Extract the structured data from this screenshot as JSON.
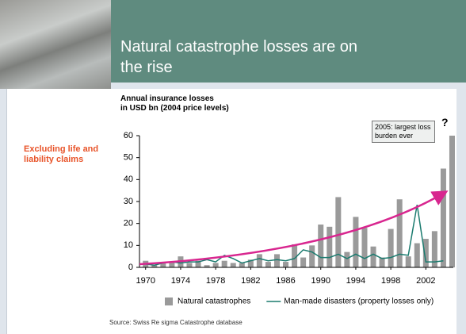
{
  "slide_title": "Natural catastrophe losses are on the rise",
  "note": "Excluding life and liability claims",
  "source": "Source: Swiss Re sigma Catastrophe database",
  "chart_data": {
    "type": "bar",
    "title": [
      "Annual insurance losses",
      "in USD bn (2004 price levels)"
    ],
    "annotation": "2005: largest loss burden ever",
    "annotation_mark": "?",
    "x": [
      1970,
      1971,
      1972,
      1973,
      1974,
      1975,
      1976,
      1977,
      1978,
      1979,
      1980,
      1981,
      1982,
      1983,
      1984,
      1985,
      1986,
      1987,
      1988,
      1989,
      1990,
      1991,
      1992,
      1993,
      1994,
      1995,
      1996,
      1997,
      1998,
      1999,
      2000,
      2001,
      2002,
      2003,
      2004,
      2005
    ],
    "xlim": [
      1969.3,
      2005.5
    ],
    "xticks": [
      1970,
      1974,
      1978,
      1982,
      1986,
      1990,
      1994,
      1998,
      2002
    ],
    "ylim": [
      0,
      60
    ],
    "yticks": [
      0,
      10,
      20,
      30,
      40,
      50,
      60
    ],
    "legend": "bottom",
    "series": [
      {
        "name": "Natural catastrophes",
        "type": "bar",
        "color": "#9a9a9a",
        "values": [
          3,
          1,
          2.5,
          2.5,
          5,
          2,
          3,
          1,
          2,
          3,
          2,
          2,
          3.5,
          6,
          2.5,
          6,
          2.5,
          10.5,
          4.5,
          10,
          19.5,
          18.5,
          32,
          7,
          23,
          18,
          9.5,
          4.5,
          17.5,
          31,
          5,
          11,
          13,
          16.5,
          45,
          60
        ]
      },
      {
        "name": "Man-made disasters (property losses only)",
        "type": "line",
        "color": "#1b7b6f",
        "values": [
          1.5,
          1,
          2,
          2.5,
          2,
          2.5,
          2.5,
          3.5,
          2.5,
          5.5,
          4,
          2,
          3,
          4,
          3,
          3.5,
          3,
          4,
          8,
          7,
          4.5,
          4.5,
          6,
          4,
          6,
          4,
          6,
          4,
          4.5,
          6,
          5.5,
          28.5,
          2.5,
          2.5,
          3,
          null
        ]
      }
    ]
  }
}
